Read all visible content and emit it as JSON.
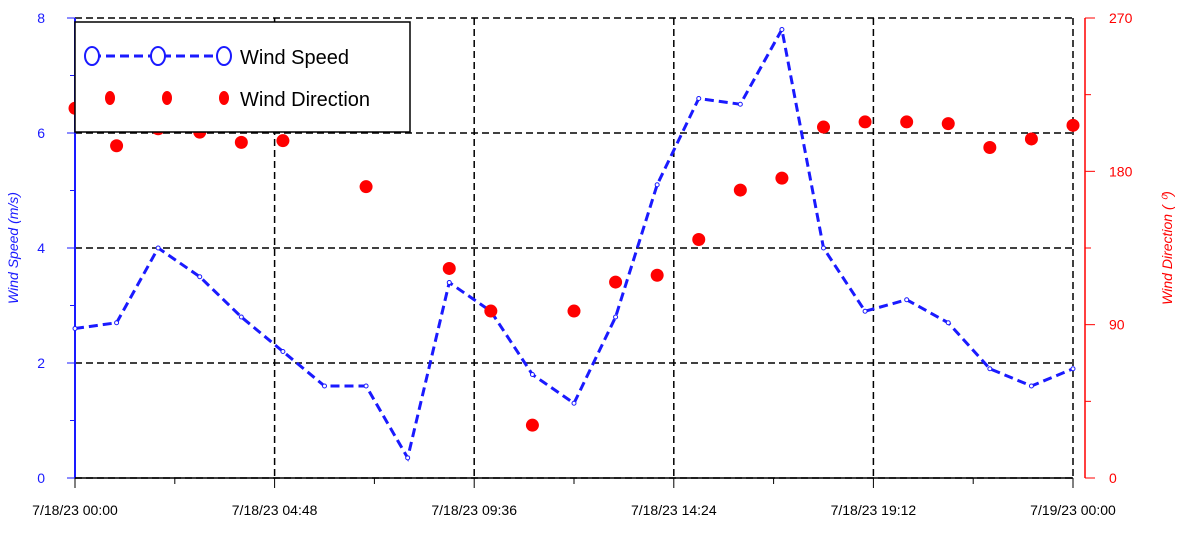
{
  "chart_data": {
    "type": "line",
    "x_axis": {
      "tick_labels": [
        "7/18/23 00:00",
        "7/18/23 04:48",
        "7/18/23 09:36",
        "7/18/23 14:24",
        "7/18/23 19:12",
        "7/19/23 00:00"
      ],
      "range": [
        "7/18/23 00:00",
        "7/19/23 00:00"
      ]
    },
    "y_left": {
      "label": "Wind Speed (m/s)",
      "ticks": [
        "0",
        "2",
        "4",
        "6",
        "8"
      ],
      "ylim": [
        0,
        8
      ],
      "color": "#1a1aff"
    },
    "y_right": {
      "label": "Wind Direction ( ⁰)",
      "ticks": [
        "0",
        "90",
        "180",
        "270"
      ],
      "ylim": [
        0,
        270
      ],
      "color": "#ff0000"
    },
    "grid": true,
    "legend": {
      "placement": "top-left",
      "entries": [
        "Wind Speed",
        "Wind Direction"
      ]
    },
    "series": [
      {
        "name": "Wind Speed",
        "axis": "left",
        "style": "dashed line with open circle markers",
        "color": "#1a1aff",
        "points": [
          {
            "x": "7/18/23 00:00",
            "y": 2.6
          },
          {
            "x": "7/18/23 01:00",
            "y": 2.7
          },
          {
            "x": "7/18/23 02:00",
            "y": 4.0
          },
          {
            "x": "7/18/23 03:00",
            "y": 3.5
          },
          {
            "x": "7/18/23 04:00",
            "y": 2.8
          },
          {
            "x": "7/18/23 05:00",
            "y": 2.2
          },
          {
            "x": "7/18/23 06:00",
            "y": 1.6
          },
          {
            "x": "7/18/23 07:00",
            "y": 1.6
          },
          {
            "x": "7/18/23 08:00",
            "y": 0.35
          },
          {
            "x": "7/18/23 09:00",
            "y": 3.4
          },
          {
            "x": "7/18/23 10:00",
            "y": 2.9
          },
          {
            "x": "7/18/23 11:00",
            "y": 1.8
          },
          {
            "x": "7/18/23 12:00",
            "y": 1.3
          },
          {
            "x": "7/18/23 13:00",
            "y": 2.8
          },
          {
            "x": "7/18/23 14:00",
            "y": 5.1
          },
          {
            "x": "7/18/23 15:00",
            "y": 6.6
          },
          {
            "x": "7/18/23 16:00",
            "y": 6.5
          },
          {
            "x": "7/18/23 17:00",
            "y": 7.8
          },
          {
            "x": "7/18/23 18:00",
            "y": 4.0
          },
          {
            "x": "7/18/23 19:00",
            "y": 2.9
          },
          {
            "x": "7/18/23 20:00",
            "y": 3.1
          },
          {
            "x": "7/18/23 21:00",
            "y": 2.7
          },
          {
            "x": "7/18/23 22:00",
            "y": 1.9
          },
          {
            "x": "7/18/23 23:00",
            "y": 1.6
          },
          {
            "x": "7/19/23 00:00",
            "y": 1.9
          }
        ]
      },
      {
        "name": "Wind Direction",
        "axis": "right",
        "style": "filled circle markers",
        "color": "#ff0000",
        "points": [
          {
            "x": "7/18/23 00:00",
            "y": 217
          },
          {
            "x": "7/18/23 01:00",
            "y": 195
          },
          {
            "x": "7/18/23 02:00",
            "y": 205
          },
          {
            "x": "7/18/23 03:00",
            "y": 203
          },
          {
            "x": "7/18/23 04:00",
            "y": 197
          },
          {
            "x": "7/18/23 05:00",
            "y": 198
          },
          {
            "x": "7/18/23 07:00",
            "y": 171
          },
          {
            "x": "7/18/23 09:00",
            "y": 123
          },
          {
            "x": "7/18/23 10:00",
            "y": 98
          },
          {
            "x": "7/18/23 11:00",
            "y": 31
          },
          {
            "x": "7/18/23 12:00",
            "y": 98
          },
          {
            "x": "7/18/23 13:00",
            "y": 115
          },
          {
            "x": "7/18/23 14:00",
            "y": 119
          },
          {
            "x": "7/18/23 15:00",
            "y": 140
          },
          {
            "x": "7/18/23 16:00",
            "y": 169
          },
          {
            "x": "7/18/23 17:00",
            "y": 176
          },
          {
            "x": "7/18/23 18:00",
            "y": 206
          },
          {
            "x": "7/18/23 19:00",
            "y": 209
          },
          {
            "x": "7/18/23 20:00",
            "y": 209
          },
          {
            "x": "7/18/23 21:00",
            "y": 208
          },
          {
            "x": "7/18/23 22:00",
            "y": 194
          },
          {
            "x": "7/18/23 23:00",
            "y": 199
          },
          {
            "x": "7/19/23 00:00",
            "y": 207
          }
        ]
      }
    ]
  }
}
